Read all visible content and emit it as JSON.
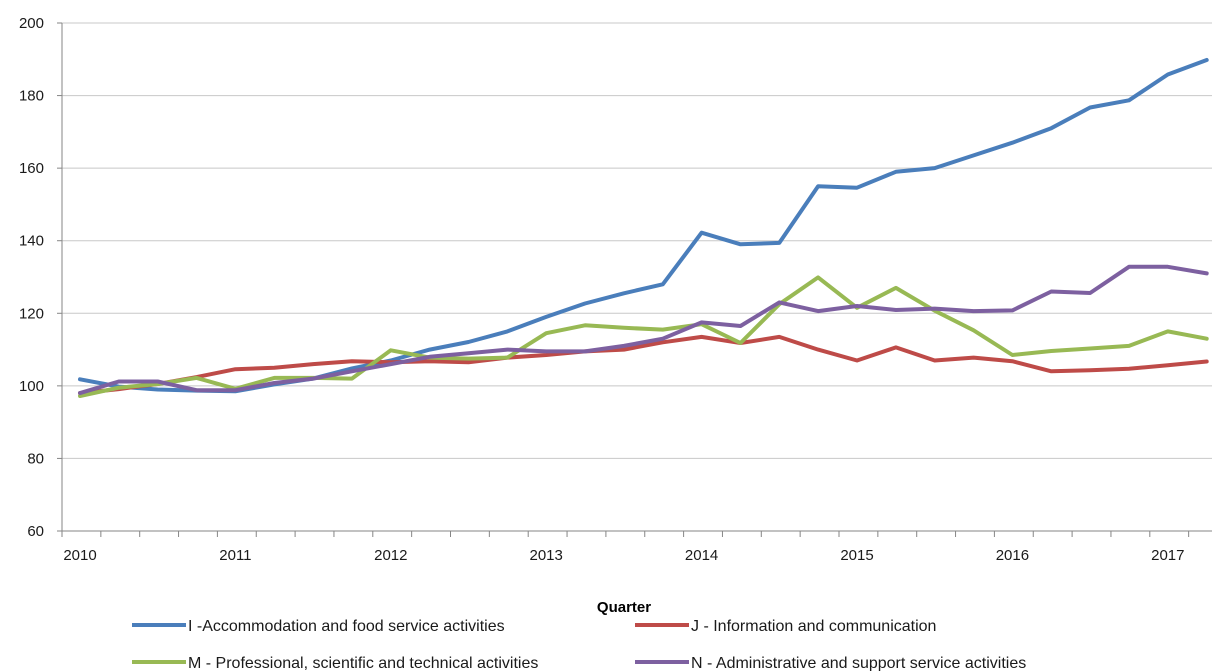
{
  "chart_data": {
    "type": "line",
    "title": "",
    "xlabel": "Quarter",
    "ylabel": "",
    "ylim": [
      60,
      200
    ],
    "yticks": [
      60,
      80,
      100,
      120,
      140,
      160,
      180,
      200
    ],
    "grid": true,
    "legend_position": "bottom",
    "x_tick_labels": [
      "2010",
      "2011",
      "2012",
      "2013",
      "2014",
      "2015",
      "2016",
      "2017"
    ],
    "x": [
      "2010 Q1",
      "2010 Q2",
      "2010 Q3",
      "2010 Q4",
      "2011 Q1",
      "2011 Q2",
      "2011 Q3",
      "2011 Q4",
      "2012 Q1",
      "2012 Q2",
      "2012 Q3",
      "2012 Q4",
      "2013 Q1",
      "2013 Q2",
      "2013 Q3",
      "2013 Q4",
      "2014 Q1",
      "2014 Q2",
      "2014 Q3",
      "2014 Q4",
      "2015 Q1",
      "2015 Q2",
      "2015 Q3",
      "2015 Q4",
      "2016 Q1",
      "2016 Q2",
      "2016 Q3",
      "2016 Q4",
      "2017 Q1",
      "2017 Q2"
    ],
    "series": [
      {
        "name": "I -Accommodation and food service activities",
        "color": "#4a7ebb",
        "values": [
          101.8,
          99.8,
          99,
          98.7,
          98.5,
          100.4,
          102,
          104.8,
          107,
          110,
          112.1,
          115,
          119,
          122.7,
          125.5,
          128,
          142.2,
          139,
          139.4,
          155,
          154.6,
          159,
          160,
          163.5,
          167,
          171,
          176.7,
          178.7,
          185.8,
          189.8
        ]
      },
      {
        "name": "J - Information and communication",
        "color": "#be4b48",
        "values": [
          98,
          99.1,
          100.5,
          102.4,
          104.6,
          105,
          106,
          106.8,
          106.5,
          106.8,
          106.5,
          107.8,
          108.5,
          109.5,
          110,
          112,
          113.5,
          111.8,
          113.5,
          110,
          107,
          110.6,
          107,
          107.8,
          106.8,
          104,
          104.3,
          104.7,
          105.7,
          106.7
        ]
      },
      {
        "name": "M - Professional, scientific and technical activities",
        "color": "#98b954",
        "values": [
          97.2,
          99.5,
          100.5,
          102.2,
          99.2,
          102.2,
          102.2,
          102,
          109.8,
          107.8,
          107.5,
          107.8,
          114.5,
          116.7,
          116,
          115.5,
          117,
          111.8,
          122.5,
          129.9,
          121.5,
          127,
          120.7,
          115.3,
          108.5,
          109.6,
          110.3,
          111,
          115,
          113
        ]
      },
      {
        "name": "N - Administrative and support service activities",
        "color": "#7d60a0",
        "values": [
          98,
          101.2,
          101.2,
          98.8,
          98.8,
          100.8,
          102,
          104,
          106,
          108,
          109,
          110,
          109.5,
          109.5,
          111,
          113,
          117.5,
          116.5,
          123,
          120.6,
          122,
          120.9,
          121.3,
          120.6,
          120.8,
          126,
          125.6,
          132.8,
          132.8,
          131
        ]
      }
    ]
  }
}
